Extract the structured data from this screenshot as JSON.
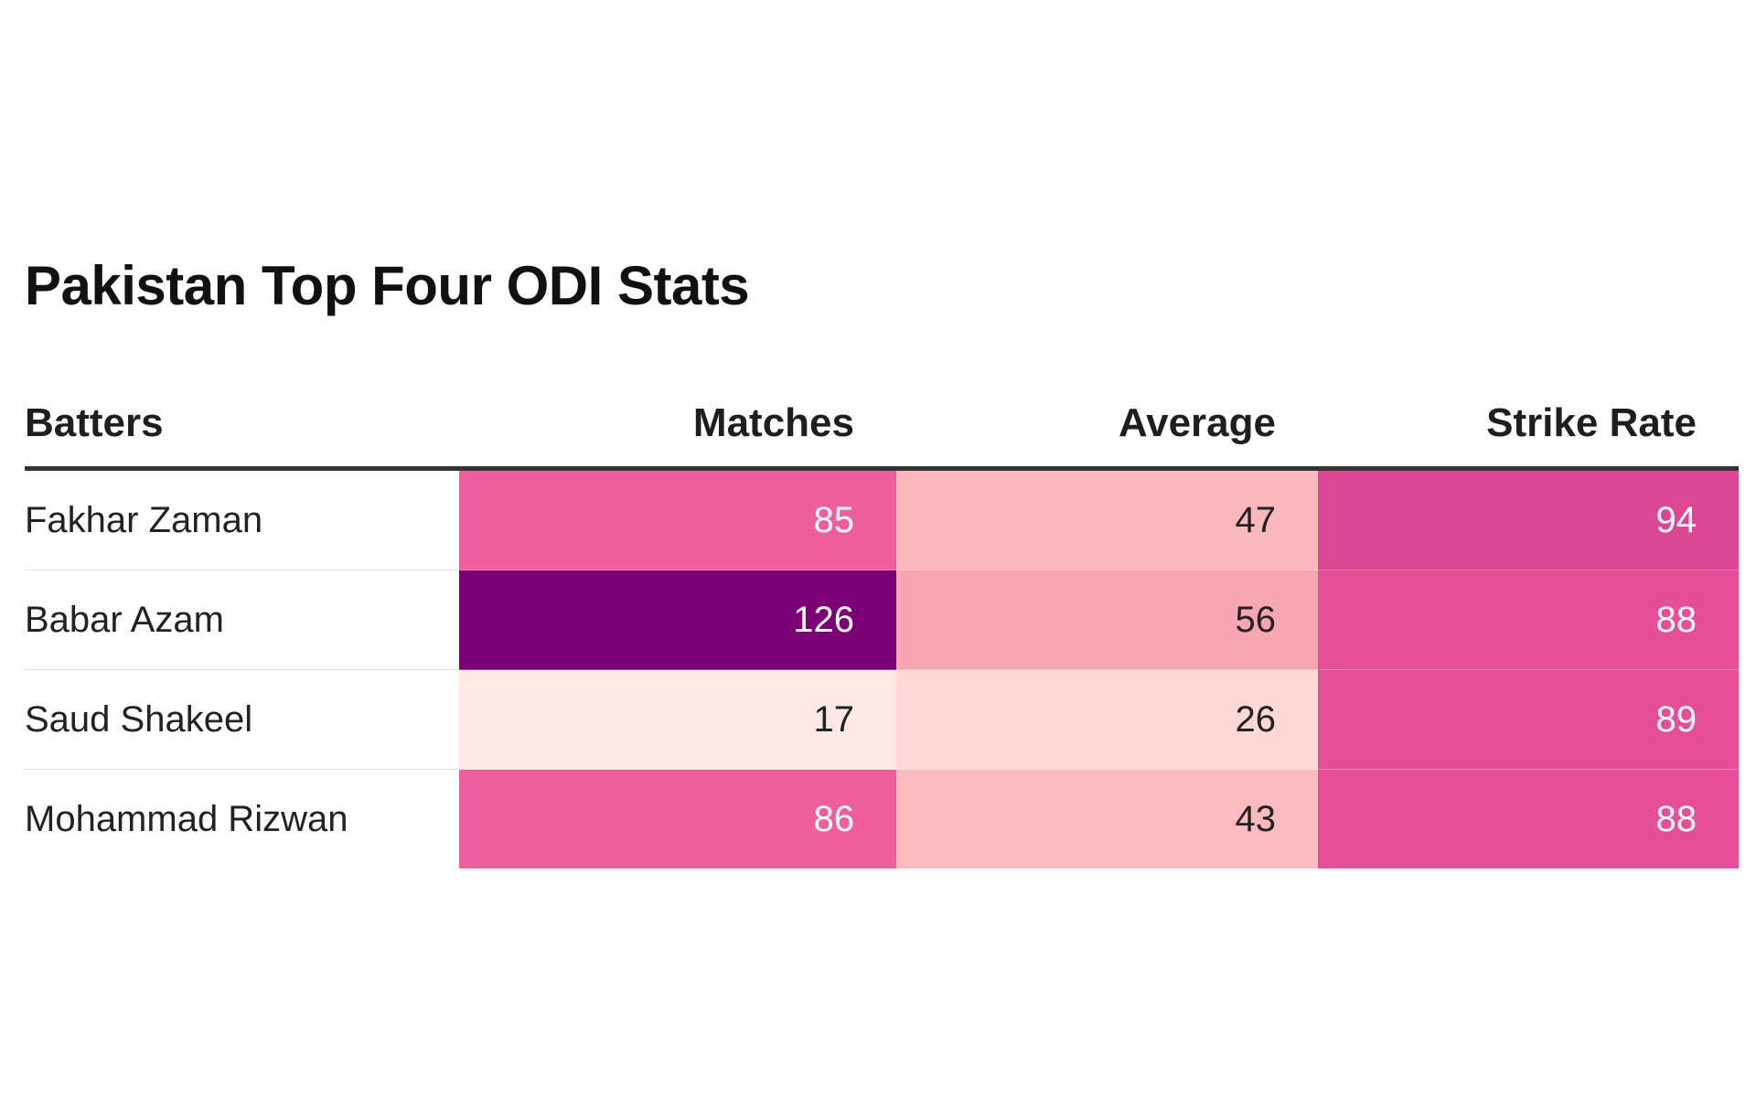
{
  "chart_data": {
    "type": "table",
    "title": "Pakistan Top Four ODI Stats",
    "columns": [
      "Batters",
      "Matches",
      "Average",
      "Strike Rate"
    ],
    "rows": [
      {
        "batter": "Fakhar Zaman",
        "values": [
          85,
          47,
          94
        ]
      },
      {
        "batter": "Babar Azam",
        "values": [
          126,
          56,
          88
        ]
      },
      {
        "batter": "Saud Shakeel",
        "values": [
          17,
          26,
          89
        ]
      },
      {
        "batter": "Mohammad Rizwan",
        "values": [
          86,
          43,
          88
        ]
      }
    ],
    "cell_colors": [
      [
        "#ef5f9e",
        "#fcb8bc",
        "#dc4795"
      ],
      [
        "#7b0075",
        "#f9a6b3",
        "#e64f98"
      ],
      [
        "#fde9e1",
        "#fdd8d4",
        "#e64f98"
      ],
      [
        "#ef5f9e",
        "#fcbcbf",
        "#e64f98"
      ]
    ],
    "cell_text_colors": [
      [
        "#ffffff",
        "#222222",
        "#ffffff"
      ],
      [
        "#ffffff",
        "#222222",
        "#ffffff"
      ],
      [
        "#222222",
        "#222222",
        "#ffffff"
      ],
      [
        "#ffffff",
        "#222222",
        "#ffffff"
      ]
    ]
  }
}
